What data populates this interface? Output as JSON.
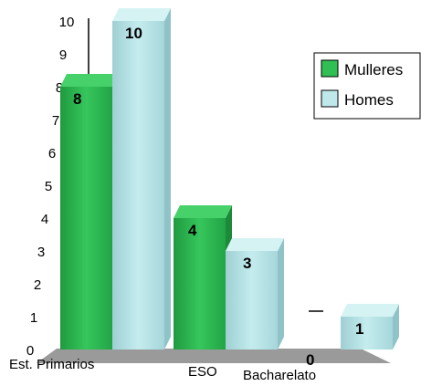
{
  "chart_data": {
    "type": "bar",
    "style": "3d-clustered-column",
    "categories": [
      "Est. Primarios",
      "ESO",
      "Bacharelato"
    ],
    "series": [
      {
        "name": "Mulleres",
        "values": [
          8,
          4,
          0
        ],
        "color": "#2fbf55"
      },
      {
        "name": "Homes",
        "values": [
          10,
          3,
          1
        ],
        "color": "#bfe8ea"
      }
    ],
    "data_labels": {
      "Mulleres": [
        "8",
        "4",
        "0"
      ],
      "Homes": [
        "10",
        "3",
        "1"
      ]
    },
    "y_ticks": [
      "0",
      "1",
      "2",
      "3",
      "4",
      "5",
      "6",
      "7",
      "8",
      "9",
      "10"
    ],
    "ylim": [
      0,
      10
    ],
    "floor_color": "#9a9a9a",
    "legend": {
      "placement": "right"
    }
  }
}
